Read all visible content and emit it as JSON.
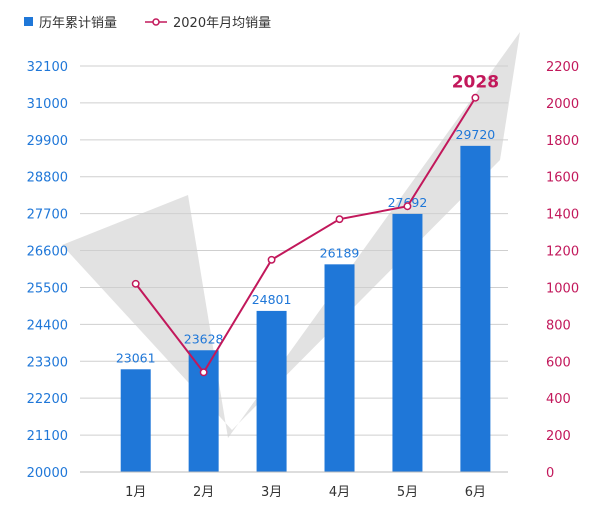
{
  "legend": {
    "bar_label": "历年累计销量",
    "line_label": "2020年月均销量"
  },
  "colors": {
    "bar": "#1f77d8",
    "line": "#c2185b",
    "left_axis_text": "#1f77d8",
    "right_axis_text": "#c2185b",
    "grid": "#cfcfcf",
    "background_shape": "#d8d8d8"
  },
  "chart_data": {
    "type": "bar",
    "categories": [
      "1月",
      "2月",
      "3月",
      "4月",
      "5月",
      "6月"
    ],
    "series": [
      {
        "name": "历年累计销量",
        "type": "bar",
        "axis": "left",
        "values": [
          23061,
          23628,
          24801,
          26189,
          27692,
          29720
        ],
        "labels": [
          "23061",
          "23628",
          "24801",
          "26189",
          "27692",
          "29720"
        ]
      },
      {
        "name": "2020年月均销量",
        "type": "line",
        "axis": "right",
        "values": [
          1020,
          540,
          1150,
          1370,
          1440,
          2028
        ],
        "labels": [
          "",
          "",
          "",
          "",
          "",
          "2028"
        ]
      }
    ],
    "left_axis": {
      "ticks": [
        "20000",
        "21100",
        "22200",
        "23300",
        "24400",
        "25500",
        "26600",
        "27700",
        "28800",
        "29900",
        "31000",
        "32100"
      ],
      "ylim": [
        20000,
        32100
      ]
    },
    "right_axis": {
      "ticks": [
        "0",
        "200",
        "400",
        "600",
        "800",
        "1000",
        "1200",
        "1400",
        "1600",
        "1800",
        "2000",
        "2200"
      ],
      "ylim": [
        0,
        2200
      ]
    },
    "grid": true,
    "legend_position": "top-left"
  }
}
